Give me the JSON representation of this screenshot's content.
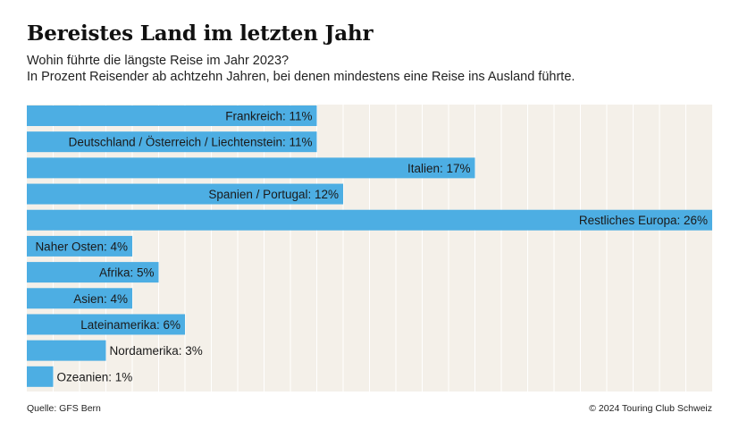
{
  "header": {
    "title": "Bereistes Land im letzten Jahr",
    "subtitle_line1": "Wohin führte die längste Reise im Jahr 2023?",
    "subtitle_line2": "In Prozent Reisender ab achtzehn Jahren, bei denen mindestens eine Reise ins Ausland führte."
  },
  "footer": {
    "source": "Quelle: GFS Bern",
    "copyright": "© 2024 Touring Club Schweiz"
  },
  "colors": {
    "bar": "#4daee3",
    "plot_background": "#f4f0e9",
    "gridline": "#ffffff",
    "text": "#1a1a1a"
  },
  "chart_data": {
    "type": "bar",
    "orientation": "horizontal",
    "unit": "%",
    "xlim": [
      0,
      26
    ],
    "grid": true,
    "categories": [
      "Frankreich",
      "Deutschland / Österreich / Liechtenstein",
      "Italien",
      "Spanien / Portugal",
      "Restliches Europa",
      "Naher Osten",
      "Afrika",
      "Asien",
      "Lateinamerika",
      "Nordamerika",
      "Ozeanien"
    ],
    "values": [
      11,
      11,
      17,
      12,
      26,
      4,
      5,
      4,
      6,
      3,
      1
    ],
    "labels": [
      "Frankreich: 11%",
      "Deutschland / Österreich / Liechtenstein: 11%",
      "Italien: 17%",
      "Spanien / Portugal: 12%",
      "Restliches Europa: 26%",
      "Naher Osten: 4%",
      "Afrika: 5%",
      "Asien: 4%",
      "Lateinamerika: 6%",
      "Nordamerika: 3%",
      "Ozeanien: 1%"
    ]
  }
}
